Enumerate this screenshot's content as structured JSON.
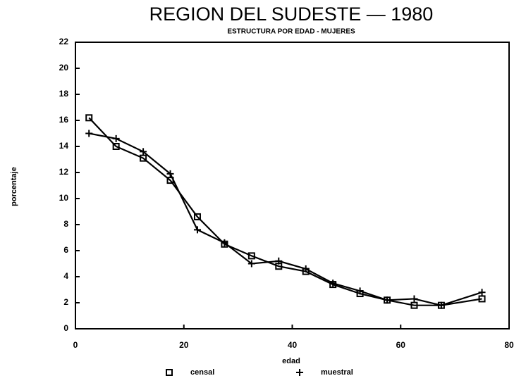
{
  "chart_data": {
    "type": "line",
    "title": "REGION DEL SUDESTE — 1980",
    "subtitle": "ESTRUCTURA POR EDAD - MUJERES",
    "x_label": "edad",
    "y_label": "porcentaje",
    "x": [
      2.5,
      7.5,
      12.5,
      17.5,
      22.5,
      27.5,
      32.5,
      37.5,
      42.5,
      47.5,
      52.5,
      57.5,
      62.5,
      67.5,
      75
    ],
    "series": [
      {
        "name": "censal",
        "color": "#000000",
        "marker": "square",
        "values": [
          16.2,
          14.0,
          13.1,
          11.4,
          8.6,
          6.5,
          5.6,
          4.8,
          4.4,
          3.4,
          2.7,
          2.2,
          1.8,
          1.8,
          2.3
        ]
      },
      {
        "name": "muestral",
        "color": "#000000",
        "marker": "plus",
        "values": [
          15.0,
          14.6,
          13.6,
          11.9,
          7.6,
          6.6,
          5.0,
          5.2,
          4.6,
          3.5,
          2.9,
          2.2,
          2.3,
          1.8,
          2.8
        ]
      }
    ],
    "xlim": [
      0,
      80
    ],
    "xticks": [
      0,
      20,
      40,
      60,
      80
    ],
    "ylim": [
      0,
      22
    ],
    "yticks": [
      0,
      2,
      4,
      6,
      8,
      10,
      12,
      14,
      16,
      18,
      20,
      22
    ],
    "grid": false,
    "legend": "bottom"
  }
}
